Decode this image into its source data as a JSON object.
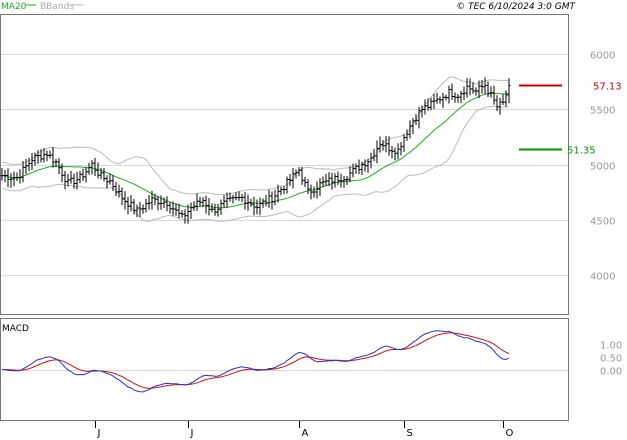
{
  "header": {
    "legend_ma": "MA20",
    "legend_bb": "BBands",
    "copyright": "© TEC 6/10/2024 3:0 GMT"
  },
  "colors": {
    "ma": "#22aa22",
    "bands": "#bbbbbb",
    "bars": "#000000",
    "grid": "#d8d8d8",
    "resistance": "#cc0000",
    "support": "#009900",
    "macd": "#2233cc",
    "signal": "#cc1111"
  },
  "chart_data": [
    {
      "type": "ohlc",
      "y_ticks": [
        {
          "value": 60,
          "label": "6000"
        },
        {
          "value": 55,
          "label": "5500"
        },
        {
          "value": 50,
          "label": "5000"
        },
        {
          "value": 45,
          "label": "4500"
        },
        {
          "value": 40,
          "label": "4000"
        }
      ],
      "ylim": [
        36.5,
        63.5
      ],
      "x_months": [
        {
          "label": "J",
          "index": 31
        },
        {
          "label": "J",
          "index": 62
        },
        {
          "label": "A",
          "index": 99
        },
        {
          "label": "S",
          "index": 134
        },
        {
          "label": "O",
          "index": 167
        }
      ],
      "anchors": [
        [
          0,
          49.0
        ],
        [
          5,
          48.8
        ],
        [
          10,
          50.5
        ],
        [
          15,
          51.0
        ],
        [
          18,
          50.2
        ],
        [
          22,
          48.3
        ],
        [
          26,
          48.8
        ],
        [
          30,
          50.0
        ],
        [
          33,
          48.9
        ],
        [
          36,
          48.5
        ],
        [
          40,
          47.0
        ],
        [
          45,
          45.8
        ],
        [
          50,
          46.8
        ],
        [
          55,
          46.6
        ],
        [
          60,
          45.2
        ],
        [
          63,
          46.1
        ],
        [
          67,
          46.8
        ],
        [
          70,
          45.8
        ],
        [
          75,
          46.6
        ],
        [
          80,
          47.0
        ],
        [
          85,
          46.2
        ],
        [
          90,
          47.0
        ],
        [
          95,
          48.3
        ],
        [
          99,
          49.5
        ],
        [
          102,
          47.5
        ],
        [
          106,
          48.2
        ],
        [
          110,
          48.6
        ],
        [
          115,
          49.0
        ],
        [
          120,
          50.0
        ],
        [
          123,
          50.6
        ],
        [
          126,
          52.0
        ],
        [
          129,
          51.5
        ],
        [
          132,
          51.3
        ],
        [
          134,
          52.5
        ],
        [
          137,
          54.0
        ],
        [
          140,
          55.0
        ],
        [
          143,
          55.4
        ],
        [
          146,
          56.0
        ],
        [
          149,
          56.5
        ],
        [
          152,
          56.3
        ],
        [
          155,
          57.0
        ],
        [
          158,
          56.6
        ],
        [
          161,
          57.2
        ],
        [
          163,
          56.2
        ],
        [
          165,
          55.2
        ],
        [
          167,
          55.5
        ],
        [
          169,
          57.13
        ]
      ],
      "n_bars": 170,
      "seed": 7,
      "resistance": {
        "label": "57.13",
        "value": 57.13
      },
      "support": {
        "label": "51.35",
        "value": 51.35
      },
      "ma_period": 20,
      "bb_period": 20,
      "bb_k": 2
    },
    {
      "type": "line",
      "title": "MACD",
      "y_ticks": [
        {
          "value": 1.0,
          "label": "1.00"
        },
        {
          "value": 0.5,
          "label": "0.50"
        },
        {
          "value": 0.0,
          "label": "0.00"
        }
      ],
      "ylim": [
        -2.0,
        2.0
      ],
      "zero_line": 0.0,
      "series": [
        {
          "key": "macd"
        },
        {
          "key": "signal"
        }
      ]
    }
  ]
}
